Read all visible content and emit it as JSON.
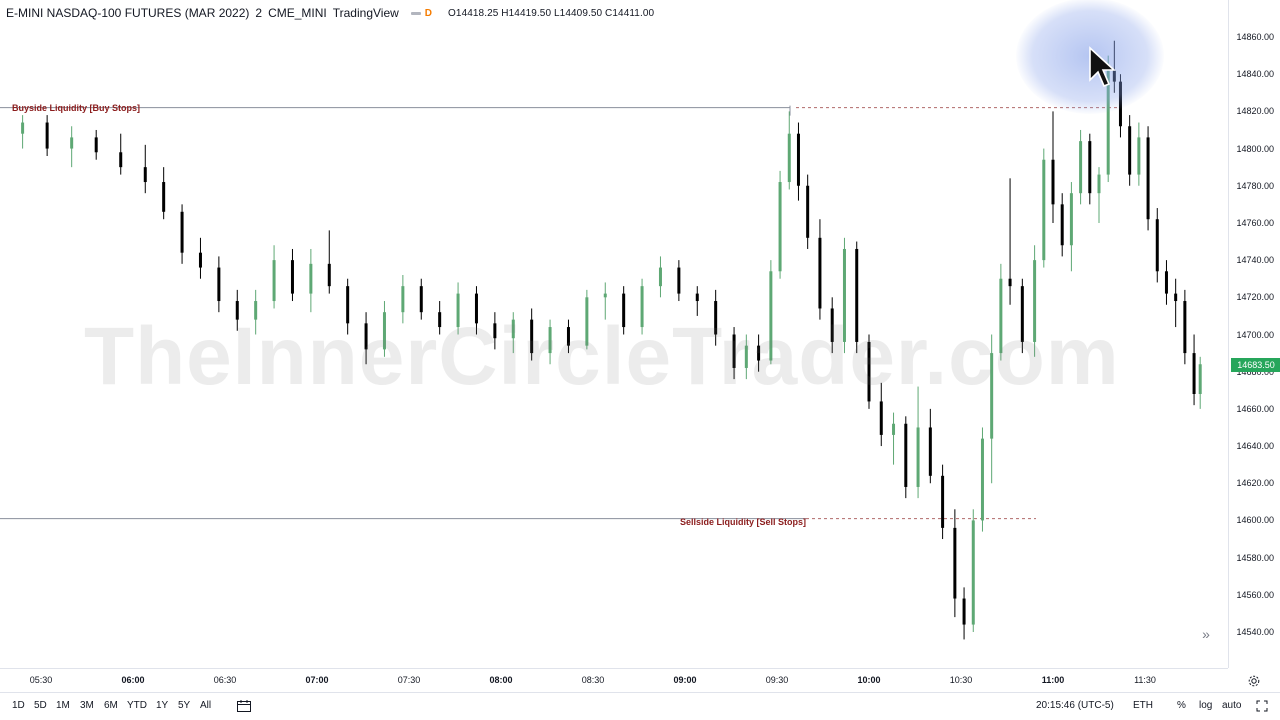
{
  "header": {
    "symbol": "E-MINI NASDAQ-100 FUTURES (MAR 2022)",
    "interval": "2",
    "exchange": "CME_MINI",
    "provider": "TradingView",
    "badge": "D",
    "ohlc": "O14418.25  H14419.50  L14409.50  C14411.00"
  },
  "watermark": "TheInnerCircleTrader.com",
  "levels": {
    "buyside": {
      "label": "Buyside Liquidity [Buy Stops]",
      "price": 14822
    },
    "sellside": {
      "label": "Sellside Liquidity [Sell Stops]",
      "price": 14601
    }
  },
  "price_axis": {
    "ticks": [
      "14860.00",
      "14840.00",
      "14820.00",
      "14800.00",
      "14780.00",
      "14760.00",
      "14740.00",
      "14720.00",
      "14700.00",
      "14680.00",
      "14660.00",
      "14640.00",
      "14620.00",
      "14600.00",
      "14580.00",
      "14560.00",
      "14540.00"
    ],
    "current_price": "14683.50",
    "current_color": "#26a65b"
  },
  "time_axis": {
    "ticks": [
      {
        "label": "05:30",
        "bold": false
      },
      {
        "label": "06:00",
        "bold": true
      },
      {
        "label": "06:30",
        "bold": false
      },
      {
        "label": "07:00",
        "bold": true
      },
      {
        "label": "07:30",
        "bold": false
      },
      {
        "label": "08:00",
        "bold": true
      },
      {
        "label": "08:30",
        "bold": false
      },
      {
        "label": "09:00",
        "bold": true
      },
      {
        "label": "09:30",
        "bold": false
      },
      {
        "label": "10:00",
        "bold": true
      },
      {
        "label": "10:30",
        "bold": false
      },
      {
        "label": "11:00",
        "bold": true
      },
      {
        "label": "11:30",
        "bold": false
      }
    ]
  },
  "bottom_bar": {
    "timeframes": [
      "1D",
      "5D",
      "1M",
      "3M",
      "6M",
      "YTD",
      "1Y",
      "5Y",
      "All"
    ],
    "clock": "20:15:46 (UTC-5)",
    "session": "ETH",
    "percent": "%",
    "log": "log",
    "auto": "auto"
  },
  "colors": {
    "up": "#5ea874",
    "down": "#000000",
    "level": "#8b1c1c"
  },
  "chart_data": {
    "type": "candlestick",
    "title": "E-MINI NASDAQ-100 FUTURES (MAR 2022)",
    "ylim": [
      14530,
      14870
    ],
    "x_range": [
      "05:20",
      "11:50"
    ],
    "series": [
      {
        "t": "05:24",
        "o": 14808,
        "h": 14818,
        "l": 14800,
        "c": 14814
      },
      {
        "t": "05:32",
        "o": 14814,
        "h": 14818,
        "l": 14796,
        "c": 14800
      },
      {
        "t": "05:40",
        "o": 14800,
        "h": 14812,
        "l": 14790,
        "c": 14806
      },
      {
        "t": "05:48",
        "o": 14806,
        "h": 14810,
        "l": 14794,
        "c": 14798
      },
      {
        "t": "05:56",
        "o": 14798,
        "h": 14808,
        "l": 14786,
        "c": 14790
      },
      {
        "t": "06:04",
        "o": 14790,
        "h": 14802,
        "l": 14776,
        "c": 14782
      },
      {
        "t": "06:10",
        "o": 14782,
        "h": 14790,
        "l": 14762,
        "c": 14766
      },
      {
        "t": "06:16",
        "o": 14766,
        "h": 14770,
        "l": 14738,
        "c": 14744
      },
      {
        "t": "06:22",
        "o": 14744,
        "h": 14752,
        "l": 14730,
        "c": 14736
      },
      {
        "t": "06:28",
        "o": 14736,
        "h": 14742,
        "l": 14712,
        "c": 14718
      },
      {
        "t": "06:34",
        "o": 14718,
        "h": 14724,
        "l": 14702,
        "c": 14708
      },
      {
        "t": "06:40",
        "o": 14708,
        "h": 14724,
        "l": 14700,
        "c": 14718
      },
      {
        "t": "06:46",
        "o": 14718,
        "h": 14748,
        "l": 14714,
        "c": 14740
      },
      {
        "t": "06:52",
        "o": 14740,
        "h": 14746,
        "l": 14718,
        "c": 14722
      },
      {
        "t": "06:58",
        "o": 14722,
        "h": 14746,
        "l": 14712,
        "c": 14738
      },
      {
        "t": "07:04",
        "o": 14738,
        "h": 14756,
        "l": 14722,
        "c": 14726
      },
      {
        "t": "07:10",
        "o": 14726,
        "h": 14730,
        "l": 14700,
        "c": 14706
      },
      {
        "t": "07:16",
        "o": 14706,
        "h": 14712,
        "l": 14684,
        "c": 14692
      },
      {
        "t": "07:22",
        "o": 14692,
        "h": 14718,
        "l": 14688,
        "c": 14712
      },
      {
        "t": "07:28",
        "o": 14712,
        "h": 14732,
        "l": 14706,
        "c": 14726
      },
      {
        "t": "07:34",
        "o": 14726,
        "h": 14730,
        "l": 14708,
        "c": 14712
      },
      {
        "t": "07:40",
        "o": 14712,
        "h": 14718,
        "l": 14700,
        "c": 14704
      },
      {
        "t": "07:46",
        "o": 14704,
        "h": 14728,
        "l": 14700,
        "c": 14722
      },
      {
        "t": "07:52",
        "o": 14722,
        "h": 14726,
        "l": 14700,
        "c": 14706
      },
      {
        "t": "07:58",
        "o": 14706,
        "h": 14712,
        "l": 14692,
        "c": 14698
      },
      {
        "t": "08:04",
        "o": 14698,
        "h": 14712,
        "l": 14690,
        "c": 14708
      },
      {
        "t": "08:10",
        "o": 14708,
        "h": 14714,
        "l": 14686,
        "c": 14690
      },
      {
        "t": "08:16",
        "o": 14690,
        "h": 14708,
        "l": 14684,
        "c": 14704
      },
      {
        "t": "08:22",
        "o": 14704,
        "h": 14708,
        "l": 14690,
        "c": 14694
      },
      {
        "t": "08:28",
        "o": 14694,
        "h": 14724,
        "l": 14692,
        "c": 14720
      },
      {
        "t": "08:34",
        "o": 14720,
        "h": 14728,
        "l": 14708,
        "c": 14722
      },
      {
        "t": "08:40",
        "o": 14722,
        "h": 14726,
        "l": 14700,
        "c": 14704
      },
      {
        "t": "08:46",
        "o": 14704,
        "h": 14730,
        "l": 14700,
        "c": 14726
      },
      {
        "t": "08:52",
        "o": 14726,
        "h": 14742,
        "l": 14720,
        "c": 14736
      },
      {
        "t": "08:58",
        "o": 14736,
        "h": 14740,
        "l": 14718,
        "c": 14722
      },
      {
        "t": "09:04",
        "o": 14722,
        "h": 14726,
        "l": 14710,
        "c": 14718
      },
      {
        "t": "09:10",
        "o": 14718,
        "h": 14724,
        "l": 14694,
        "c": 14700
      },
      {
        "t": "09:16",
        "o": 14700,
        "h": 14704,
        "l": 14676,
        "c": 14682
      },
      {
        "t": "09:20",
        "o": 14682,
        "h": 14700,
        "l": 14676,
        "c": 14694
      },
      {
        "t": "09:24",
        "o": 14694,
        "h": 14700,
        "l": 14680,
        "c": 14686
      },
      {
        "t": "09:28",
        "o": 14686,
        "h": 14740,
        "l": 14684,
        "c": 14734
      },
      {
        "t": "09:31",
        "o": 14734,
        "h": 14788,
        "l": 14730,
        "c": 14782
      },
      {
        "t": "09:34",
        "o": 14782,
        "h": 14820,
        "l": 14778,
        "c": 14808
      },
      {
        "t": "09:37",
        "o": 14808,
        "h": 14814,
        "l": 14772,
        "c": 14780
      },
      {
        "t": "09:40",
        "o": 14780,
        "h": 14786,
        "l": 14746,
        "c": 14752
      },
      {
        "t": "09:44",
        "o": 14752,
        "h": 14762,
        "l": 14708,
        "c": 14714
      },
      {
        "t": "09:48",
        "o": 14714,
        "h": 14720,
        "l": 14690,
        "c": 14696
      },
      {
        "t": "09:52",
        "o": 14696,
        "h": 14752,
        "l": 14690,
        "c": 14746
      },
      {
        "t": "09:56",
        "o": 14746,
        "h": 14750,
        "l": 14690,
        "c": 14696
      },
      {
        "t": "10:00",
        "o": 14696,
        "h": 14700,
        "l": 14660,
        "c": 14664
      },
      {
        "t": "10:04",
        "o": 14664,
        "h": 14674,
        "l": 14640,
        "c": 14646
      },
      {
        "t": "10:08",
        "o": 14646,
        "h": 14658,
        "l": 14630,
        "c": 14652
      },
      {
        "t": "10:12",
        "o": 14652,
        "h": 14656,
        "l": 14612,
        "c": 14618
      },
      {
        "t": "10:16",
        "o": 14618,
        "h": 14672,
        "l": 14612,
        "c": 14650
      },
      {
        "t": "10:20",
        "o": 14650,
        "h": 14660,
        "l": 14620,
        "c": 14624
      },
      {
        "t": "10:24",
        "o": 14624,
        "h": 14630,
        "l": 14590,
        "c": 14596
      },
      {
        "t": "10:28",
        "o": 14596,
        "h": 14606,
        "l": 14548,
        "c": 14558
      },
      {
        "t": "10:31",
        "o": 14558,
        "h": 14564,
        "l": 14536,
        "c": 14544
      },
      {
        "t": "10:34",
        "o": 14544,
        "h": 14606,
        "l": 14540,
        "c": 14600
      },
      {
        "t": "10:37",
        "o": 14600,
        "h": 14650,
        "l": 14594,
        "c": 14644
      },
      {
        "t": "10:40",
        "o": 14644,
        "h": 14700,
        "l": 14620,
        "c": 14690
      },
      {
        "t": "10:43",
        "o": 14690,
        "h": 14738,
        "l": 14686,
        "c": 14730
      },
      {
        "t": "10:46",
        "o": 14730,
        "h": 14784,
        "l": 14716,
        "c": 14726
      },
      {
        "t": "10:50",
        "o": 14726,
        "h": 14730,
        "l": 14690,
        "c": 14696
      },
      {
        "t": "10:54",
        "o": 14696,
        "h": 14748,
        "l": 14688,
        "c": 14740
      },
      {
        "t": "10:57",
        "o": 14740,
        "h": 14800,
        "l": 14736,
        "c": 14794
      },
      {
        "t": "11:00",
        "o": 14794,
        "h": 14820,
        "l": 14760,
        "c": 14770
      },
      {
        "t": "11:03",
        "o": 14770,
        "h": 14776,
        "l": 14742,
        "c": 14748
      },
      {
        "t": "11:06",
        "o": 14748,
        "h": 14782,
        "l": 14734,
        "c": 14776
      },
      {
        "t": "11:09",
        "o": 14776,
        "h": 14810,
        "l": 14770,
        "c": 14804
      },
      {
        "t": "11:12",
        "o": 14804,
        "h": 14808,
        "l": 14770,
        "c": 14776
      },
      {
        "t": "11:15",
        "o": 14776,
        "h": 14790,
        "l": 14760,
        "c": 14786
      },
      {
        "t": "11:18",
        "o": 14786,
        "h": 14850,
        "l": 14782,
        "c": 14842
      },
      {
        "t": "11:20",
        "o": 14842,
        "h": 14858,
        "l": 14830,
        "c": 14836
      },
      {
        "t": "11:22",
        "o": 14836,
        "h": 14840,
        "l": 14806,
        "c": 14812
      },
      {
        "t": "11:25",
        "o": 14812,
        "h": 14818,
        "l": 14780,
        "c": 14786
      },
      {
        "t": "11:28",
        "o": 14786,
        "h": 14814,
        "l": 14780,
        "c": 14806
      },
      {
        "t": "11:31",
        "o": 14806,
        "h": 14812,
        "l": 14756,
        "c": 14762
      },
      {
        "t": "11:34",
        "o": 14762,
        "h": 14768,
        "l": 14728,
        "c": 14734
      },
      {
        "t": "11:37",
        "o": 14734,
        "h": 14740,
        "l": 14716,
        "c": 14722
      },
      {
        "t": "11:40",
        "o": 14722,
        "h": 14730,
        "l": 14704,
        "c": 14718
      },
      {
        "t": "11:43",
        "o": 14718,
        "h": 14724,
        "l": 14684,
        "c": 14690
      },
      {
        "t": "11:46",
        "o": 14690,
        "h": 14700,
        "l": 14662,
        "c": 14668
      },
      {
        "t": "11:48",
        "o": 14668,
        "h": 14688,
        "l": 14660,
        "c": 14684
      }
    ]
  }
}
